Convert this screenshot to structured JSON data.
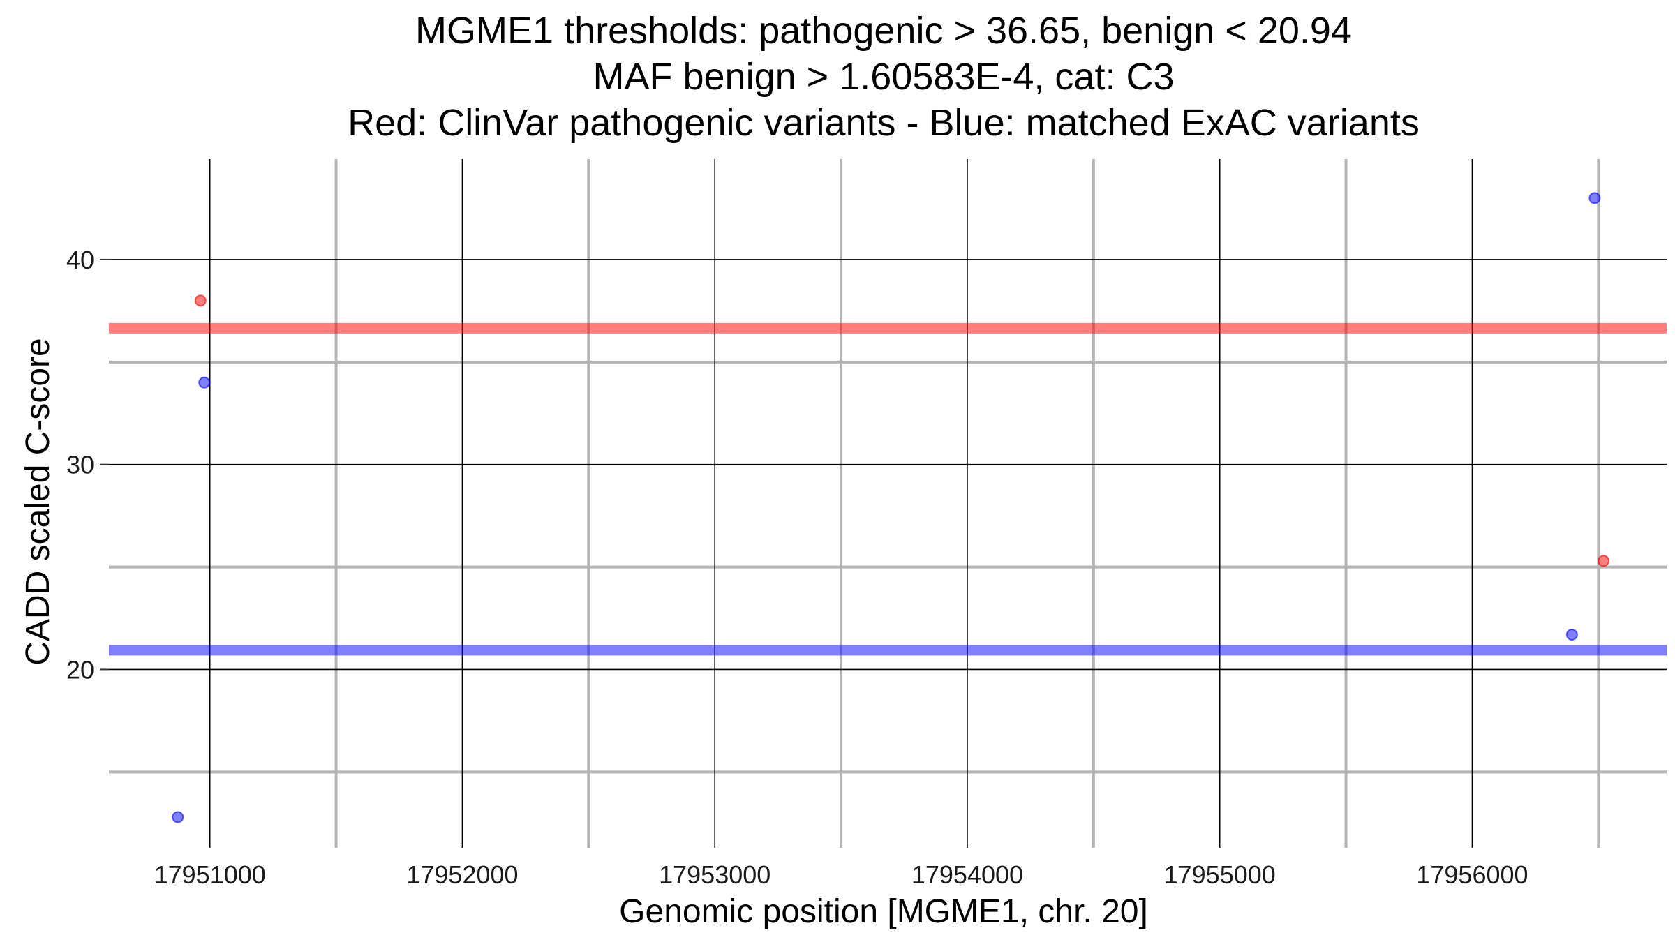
{
  "chart_data": {
    "type": "scatter",
    "title_lines": [
      "MGME1 thresholds: pathogenic > 36.65, benign < 20.94",
      "MAF benign > 1.60583E-4, cat: C3",
      "Red: ClinVar pathogenic variants - Blue: matched ExAC variants"
    ],
    "xlabel": "Genomic position [MGME1, chr. 20]",
    "ylabel": "CADD scaled C-score",
    "xlim": [
      17950600,
      17956770
    ],
    "ylim": [
      11.3,
      44.9
    ],
    "x_major_ticks": [
      17951000,
      17952000,
      17953000,
      17954000,
      17955000,
      17956000
    ],
    "x_tick_labels": [
      "17951000",
      "17952000",
      "17953000",
      "17954000",
      "17955000",
      "17956000"
    ],
    "x_minor_ticks": [
      17951500,
      17952500,
      17953500,
      17954500,
      17955500,
      17956500
    ],
    "y_major_ticks": [
      20,
      30,
      40
    ],
    "y_tick_labels": [
      "20",
      "30",
      "40"
    ],
    "y_minor_ticks": [
      15,
      25,
      35
    ],
    "grid": true,
    "colors": {
      "pathogenic": "#ff0000",
      "benign": "#0000ff",
      "major_grid": "#000000",
      "minor_grid": "#b3b3b3"
    },
    "thresholds": [
      {
        "series": "pathogenic",
        "y": 36.65
      },
      {
        "series": "benign",
        "y": 20.94
      }
    ],
    "series": [
      {
        "key": "pathogenic",
        "points": [
          {
            "x": 17950963,
            "y": 38.0
          },
          {
            "x": 17956520,
            "y": 25.3
          }
        ]
      },
      {
        "key": "benign",
        "points": [
          {
            "x": 17950873,
            "y": 12.8
          },
          {
            "x": 17950978,
            "y": 34.0
          },
          {
            "x": 17956395,
            "y": 21.7
          },
          {
            "x": 17956485,
            "y": 43.0
          }
        ]
      }
    ]
  }
}
